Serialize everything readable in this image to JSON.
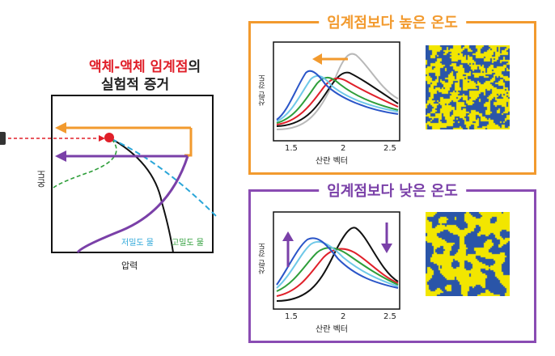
{
  "title": {
    "red_part": "액체-액체 임계점",
    "dark_suffix": "의",
    "line2": "실험적 증거"
  },
  "phase_diagram": {
    "y_label": "온도",
    "x_label": "압력",
    "low_density_label": "저밀도 물",
    "high_density_label": "고밀도 물"
  },
  "panel_above": {
    "title": "임계점보다 높은 온도",
    "y_label": "산란 강도",
    "x_label": "산란 벡터",
    "ticks": [
      "1.5",
      "2",
      "2.5"
    ]
  },
  "panel_below": {
    "title": "임계점보다 낮은 온도",
    "y_label": "산란 강도",
    "x_label": "산란 벡터",
    "ticks": [
      "1.5",
      "2",
      "2.5"
    ]
  },
  "colors": {
    "orange": "#f29a2e",
    "purple": "#7a40a8",
    "red": "#e0202a",
    "green": "#2e9e3a",
    "cyan": "#2aa6d8",
    "sim_yellow": "#f2e600",
    "sim_blue": "#2a55a8"
  }
}
